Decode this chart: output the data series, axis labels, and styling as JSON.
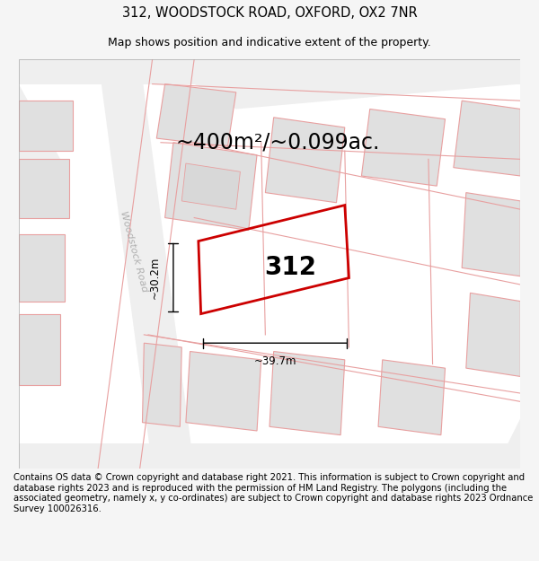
{
  "title": "312, WOODSTOCK ROAD, OXFORD, OX2 7NR",
  "subtitle": "Map shows position and indicative extent of the property.",
  "area_text": "~400m²/~0.099ac.",
  "property_number": "312",
  "dim_width": "~39.7m",
  "dim_height": "~30.2m",
  "road_label": "Woodstock Road",
  "footer": "Contains OS data © Crown copyright and database right 2021. This information is subject to Crown copyright and database rights 2023 and is reproduced with the permission of HM Land Registry. The polygons (including the associated geometry, namely x, y co-ordinates) are subject to Crown copyright and database rights 2023 Ordnance Survey 100026316.",
  "bg_color": "#f5f5f5",
  "map_bg": "#ffffff",
  "property_outline_color": "#cc0000",
  "title_fontsize": 10.5,
  "subtitle_fontsize": 9,
  "area_fontsize": 17,
  "footer_fontsize": 7.2,
  "map_xlim": [
    0,
    600
  ],
  "map_ylim": [
    0,
    490
  ],
  "road_color": "#efefef",
  "block_fill": "#e0e0e0",
  "block_edge": "#e8a0a0",
  "road_edge": "#e8a0a0"
}
